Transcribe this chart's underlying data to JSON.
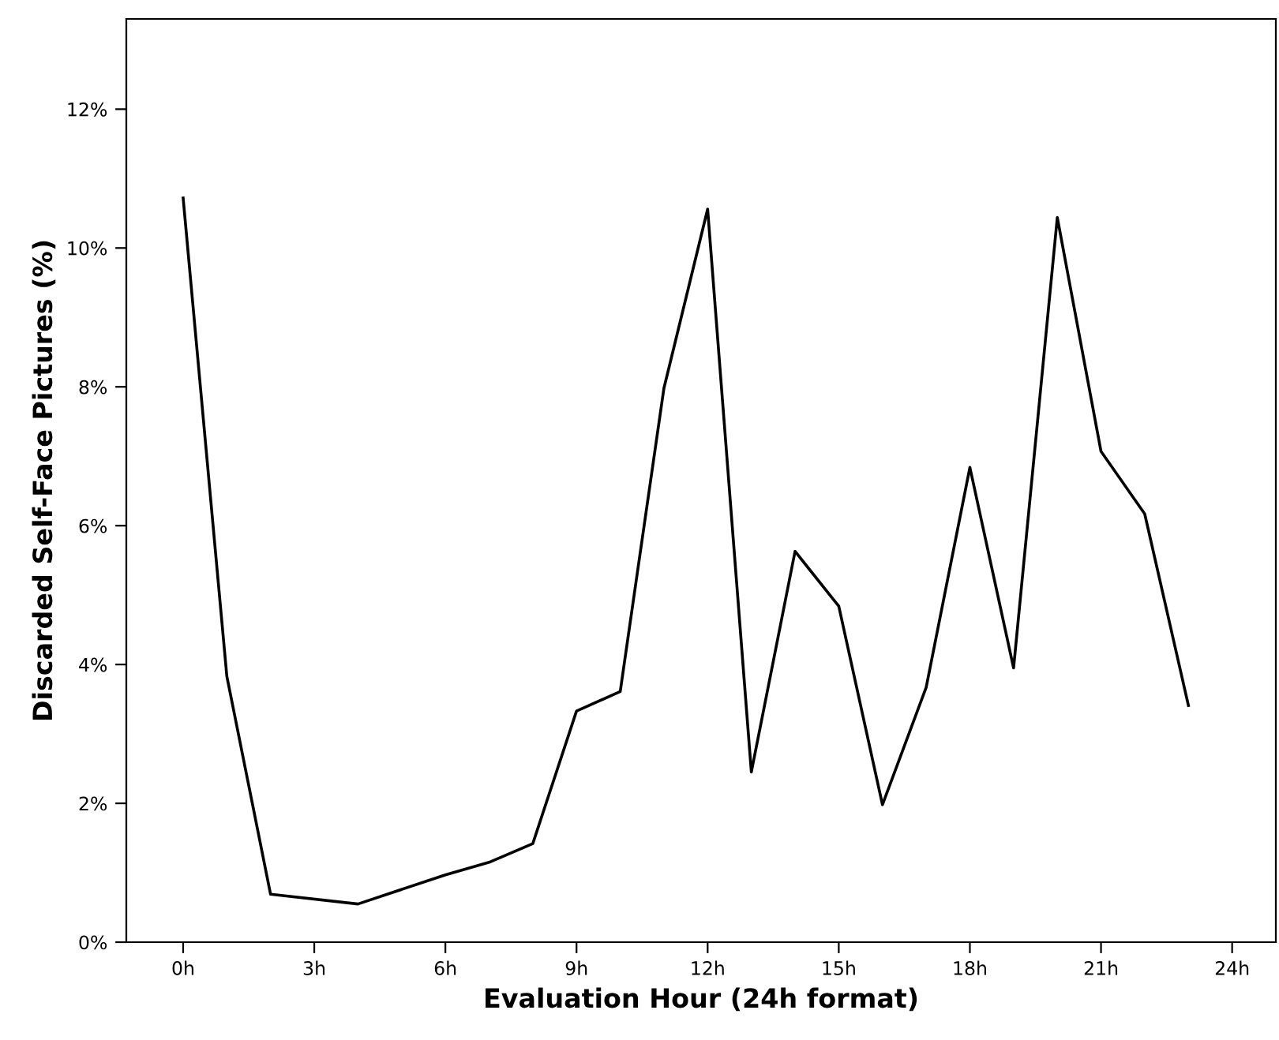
{
  "chart_data": {
    "type": "line",
    "xlabel": "Evaluation Hour (24h format)",
    "ylabel": "Discarded Self-Face Pictures (%)",
    "x": [
      0,
      1,
      2,
      4,
      6,
      7,
      8,
      9,
      10,
      11,
      12,
      13,
      14,
      15,
      16,
      17,
      18,
      19,
      20,
      21,
      22,
      23
    ],
    "series": [
      {
        "color": "#000000",
        "values": [
          10.72,
          3.83,
          0.69,
          0.55,
          0.97,
          1.15,
          1.42,
          3.33,
          3.61,
          7.98,
          10.56,
          2.45,
          5.63,
          4.84,
          1.98,
          3.67,
          6.84,
          3.95,
          10.44,
          7.07,
          6.17,
          3.41
        ]
      }
    ],
    "xlim": [
      -1.3,
      25
    ],
    "ylim": [
      0,
      13.3
    ],
    "xticks": [
      {
        "value": 0,
        "label": "0h"
      },
      {
        "value": 3,
        "label": "3h"
      },
      {
        "value": 6,
        "label": "6h"
      },
      {
        "value": 9,
        "label": "9h"
      },
      {
        "value": 12,
        "label": "12h"
      },
      {
        "value": 15,
        "label": "15h"
      },
      {
        "value": 18,
        "label": "18h"
      },
      {
        "value": 21,
        "label": "21h"
      },
      {
        "value": 24,
        "label": "24h"
      }
    ],
    "yticks": [
      {
        "value": 0,
        "label": "0%"
      },
      {
        "value": 2,
        "label": "2%"
      },
      {
        "value": 4,
        "label": "4%"
      },
      {
        "value": 6,
        "label": "6%"
      },
      {
        "value": 8,
        "label": "8%"
      },
      {
        "value": 10,
        "label": "10%"
      },
      {
        "value": 12,
        "label": "12%"
      }
    ],
    "grid": false,
    "marker": "none",
    "line_style": "solid"
  }
}
